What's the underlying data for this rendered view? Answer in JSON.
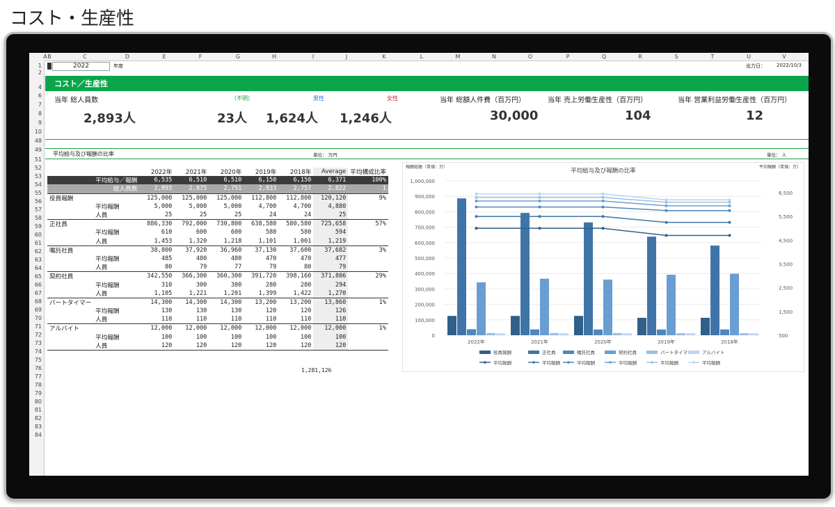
{
  "page_title": "コスト・生産性",
  "columns": [
    "A",
    "B",
    "C",
    "D",
    "E",
    "F",
    "G",
    "H",
    "I",
    "J",
    "K",
    "L",
    "M",
    "N",
    "O",
    "P",
    "Q",
    "R",
    "S",
    "T",
    "U",
    "V"
  ],
  "rows": [
    "1",
    "2",
    "4",
    "6",
    "7",
    "8",
    "9",
    "10",
    "48",
    "49",
    "51",
    "52",
    "53",
    "54",
    "55",
    "56",
    "57",
    "58",
    "59",
    "60",
    "61",
    "62",
    "63",
    "64",
    "65",
    "66",
    "67",
    "68",
    "69",
    "70",
    "71",
    "72",
    "73",
    "74",
    "75",
    "76",
    "77",
    "78",
    "79",
    "80",
    "81",
    "82",
    "83",
    "84"
  ],
  "sheet": {
    "year": "2022",
    "year_label": "年度",
    "output_date_label": "出力日：",
    "output_date": "2022/10/3",
    "section_title": "コスト／生産性",
    "kpi": {
      "total_staff_label": "当年 総人員数",
      "unknown_label": "（不明）",
      "male_label": "男性",
      "female_label": "女性",
      "total_staff": "2,893人",
      "unknown": "23人",
      "male": "1,624人",
      "female": "1,246人",
      "labor_cost_label": "当年 総額人件費（百万円）",
      "labor_cost": "30,000",
      "sales_productivity_label": "当年 売上労働生産性（百万円）",
      "sales_productivity": "104",
      "op_productivity_label": "当年 営業利益労働生産性（百万円）",
      "op_productivity": "12"
    },
    "sub_section_title": "平均給与及び報酬の比率",
    "unit_label": "単位： 万円",
    "unit_label_right": "単位： 人"
  },
  "table": {
    "headers": [
      "2022年",
      "2021年",
      "2020年",
      "2019年",
      "2018年",
      "Average",
      "平均構成比率"
    ],
    "rows": [
      {
        "c1": "平均給与／報酬",
        "c2": "",
        "v": [
          "6,535",
          "6,510",
          "6,510",
          "6,150",
          "6,150",
          "6,371",
          "100%"
        ],
        "style": "dark"
      },
      {
        "c1": "総人員数",
        "c2": "",
        "v": [
          "2,893",
          "2,875",
          "2,751",
          "2,833",
          "2,757",
          "2,822",
          "1"
        ],
        "style": "grey"
      },
      {
        "c1": "役員報酬",
        "c2": "",
        "v": [
          "125,000",
          "125,000",
          "125,000",
          "112,800",
          "112,800",
          "120,120",
          "9%"
        ],
        "style": "sep"
      },
      {
        "c1": "",
        "c2": "平均報酬",
        "v": [
          "5,000",
          "5,000",
          "5,000",
          "4,700",
          "4,700",
          "4,880",
          ""
        ],
        "style": ""
      },
      {
        "c1": "",
        "c2": "人員",
        "v": [
          "25",
          "25",
          "25",
          "24",
          "24",
          "25",
          ""
        ],
        "style": ""
      },
      {
        "c1": "正社員",
        "c2": "",
        "v": [
          "886,330",
          "792,000",
          "730,800",
          "638,580",
          "580,580",
          "725,658",
          "57%"
        ],
        "style": "sep"
      },
      {
        "c1": "",
        "c2": "平均報酬",
        "v": [
          "610",
          "600",
          "600",
          "580",
          "580",
          "594",
          ""
        ],
        "style": ""
      },
      {
        "c1": "",
        "c2": "人員",
        "v": [
          "1,453",
          "1,320",
          "1,218",
          "1,101",
          "1,001",
          "1,219",
          ""
        ],
        "style": ""
      },
      {
        "c1": "嘱託社員",
        "c2": "",
        "v": [
          "38,800",
          "37,920",
          "36,960",
          "37,130",
          "37,600",
          "37,682",
          "3%"
        ],
        "style": "sep"
      },
      {
        "c1": "",
        "c2": "平均報酬",
        "v": [
          "485",
          "480",
          "480",
          "470",
          "470",
          "477",
          ""
        ],
        "style": ""
      },
      {
        "c1": "",
        "c2": "人員",
        "v": [
          "80",
          "79",
          "77",
          "79",
          "80",
          "79",
          ""
        ],
        "style": ""
      },
      {
        "c1": "契約社員",
        "c2": "",
        "v": [
          "342,550",
          "366,300",
          "360,300",
          "391,720",
          "398,160",
          "371,806",
          "29%"
        ],
        "style": "sep"
      },
      {
        "c1": "",
        "c2": "平均報酬",
        "v": [
          "310",
          "300",
          "300",
          "280",
          "280",
          "294",
          ""
        ],
        "style": ""
      },
      {
        "c1": "",
        "c2": "人員",
        "v": [
          "1,105",
          "1,221",
          "1,201",
          "1,399",
          "1,422",
          "1,270",
          ""
        ],
        "style": ""
      },
      {
        "c1": "パートタイマー",
        "c2": "",
        "v": [
          "14,300",
          "14,300",
          "14,300",
          "13,200",
          "13,200",
          "13,860",
          "1%"
        ],
        "style": "sep"
      },
      {
        "c1": "",
        "c2": "平均報酬",
        "v": [
          "130",
          "130",
          "130",
          "120",
          "120",
          "126",
          ""
        ],
        "style": ""
      },
      {
        "c1": "",
        "c2": "人員",
        "v": [
          "110",
          "110",
          "110",
          "110",
          "110",
          "110",
          ""
        ],
        "style": ""
      },
      {
        "c1": "アルバイト",
        "c2": "",
        "v": [
          "12,000",
          "12,000",
          "12,000",
          "12,000",
          "12,000",
          "12,000",
          "1%"
        ],
        "style": "sep"
      },
      {
        "c1": "",
        "c2": "平均報酬",
        "v": [
          "100",
          "100",
          "100",
          "100",
          "100",
          "100",
          ""
        ],
        "style": ""
      },
      {
        "c1": "",
        "c2": "人員",
        "v": [
          "120",
          "120",
          "120",
          "120",
          "120",
          "120",
          ""
        ],
        "style": "last"
      }
    ],
    "total": "1,281,126"
  },
  "chart_data": {
    "type": "bar",
    "title": "平均給与及び報酬の比率",
    "ylabel_left": "報酬総額（単価：万）",
    "ylabel_right": "平均報酬（単価：万）",
    "ylim_left": [
      0,
      1000000
    ],
    "yticks_left": [
      "0",
      "100,000",
      "200,000",
      "300,000",
      "400,000",
      "500,000",
      "600,000",
      "700,000",
      "800,000",
      "900,000",
      "1,000,000"
    ],
    "ylim_right": [
      500,
      7000
    ],
    "yticks_right": [
      "500",
      "1,500",
      "2,500",
      "3,500",
      "4,500",
      "5,500",
      "6,500"
    ],
    "categories": [
      "2022年",
      "2021年",
      "2020年",
      "2019年",
      "2018年"
    ],
    "series": [
      {
        "name": "役員報酬",
        "values": [
          125000,
          125000,
          125000,
          112800,
          112800
        ],
        "color": "#2f5f8a"
      },
      {
        "name": "正社員",
        "values": [
          886330,
          792000,
          730800,
          638580,
          580580
        ],
        "color": "#3f74a8"
      },
      {
        "name": "嘱託社員",
        "values": [
          38800,
          37920,
          36960,
          37130,
          37600
        ],
        "color": "#4f86bd"
      },
      {
        "name": "契約社員",
        "values": [
          342550,
          366300,
          360300,
          391720,
          398160
        ],
        "color": "#6a9ed3"
      },
      {
        "name": "パートタイマー",
        "values": [
          14300,
          14300,
          14300,
          13200,
          13200
        ],
        "color": "#9bbfe3"
      },
      {
        "name": "アルバイト",
        "values": [
          12000,
          12000,
          12000,
          12000,
          12000
        ],
        "color": "#bcd4ee"
      }
    ],
    "lines": [
      {
        "name": "平均報酬",
        "values": [
          5000,
          5000,
          5000,
          4700,
          4700
        ],
        "color": "#2f5f8a"
      },
      {
        "name": "平均報酬",
        "values": [
          5500,
          5500,
          5500,
          5250,
          5250
        ],
        "color": "#3f74a8"
      },
      {
        "name": "平均報酬",
        "values": [
          5900,
          5900,
          5900,
          5750,
          5750
        ],
        "color": "#4f86bd"
      },
      {
        "name": "平均報酬",
        "values": [
          6150,
          6150,
          6150,
          5950,
          5950
        ],
        "color": "#6a9ed3"
      },
      {
        "name": "平均報酬",
        "values": [
          6300,
          6300,
          6300,
          6100,
          6100
        ],
        "color": "#9bbfe3"
      },
      {
        "name": "平均報酬",
        "values": [
          6450,
          6450,
          6450,
          6200,
          6200
        ],
        "color": "#bcd4ee"
      }
    ]
  }
}
